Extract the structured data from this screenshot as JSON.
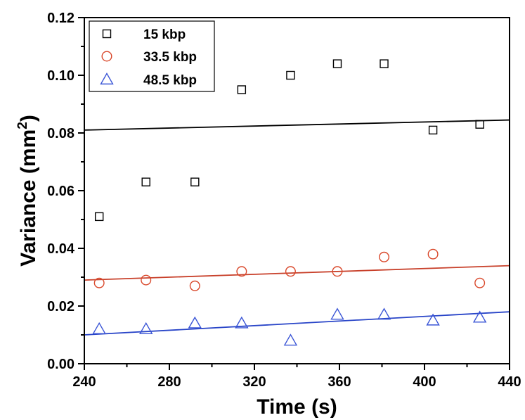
{
  "chart_data": {
    "type": "scatter",
    "title": "",
    "xlabel": "Time (s)",
    "ylabel_main": "Variance (mm",
    "ylabel_sup": "2",
    "ylabel_close": ")",
    "xlim": [
      240,
      440
    ],
    "ylim": [
      0,
      0.12
    ],
    "xticks": [
      240,
      280,
      320,
      360,
      400,
      440
    ],
    "xtick_labels": [
      "240",
      "280",
      "320",
      "360",
      "400",
      "440"
    ],
    "xminor": [
      260,
      300,
      340,
      380,
      420
    ],
    "yticks": [
      0,
      0.02,
      0.04,
      0.06,
      0.08,
      0.1,
      0.12
    ],
    "ytick_labels": [
      "0.00",
      "0.02",
      "0.04",
      "0.06",
      "0.08",
      "0.10",
      "0.12"
    ],
    "yminor": [
      0.01,
      0.03,
      0.05,
      0.07,
      0.09,
      0.11
    ],
    "grid": false,
    "legend_position": "top-left",
    "series": [
      {
        "name": "15 kbp",
        "marker": "square",
        "color": "#000000",
        "fit_color": "#000000",
        "x": [
          247,
          269,
          292,
          314,
          337,
          359,
          381,
          404,
          426
        ],
        "y": [
          0.051,
          0.063,
          0.063,
          0.095,
          0.1,
          0.104,
          0.104,
          0.081,
          0.083
        ],
        "fit_line": {
          "x": [
            240,
            440
          ],
          "y": [
            0.081,
            0.0845
          ]
        }
      },
      {
        "name": "33.5 kbp",
        "marker": "circle",
        "color": "#d9482b",
        "fit_color": "#c8402a",
        "x": [
          247,
          269,
          292,
          314,
          337,
          359,
          381,
          404,
          426
        ],
        "y": [
          0.028,
          0.029,
          0.027,
          0.032,
          0.032,
          0.032,
          0.037,
          0.038,
          0.028
        ],
        "fit_line": {
          "x": [
            240,
            440
          ],
          "y": [
            0.029,
            0.034
          ]
        }
      },
      {
        "name": "48.5 kbp",
        "marker": "triangle",
        "color": "#3a55d6",
        "fit_color": "#2945c8",
        "x": [
          247,
          269,
          292,
          314,
          337,
          359,
          381,
          404,
          426
        ],
        "y": [
          0.012,
          0.012,
          0.014,
          0.014,
          0.008,
          0.017,
          0.017,
          0.015,
          0.016
        ],
        "fit_line": {
          "x": [
            240,
            440
          ],
          "y": [
            0.01,
            0.018
          ]
        }
      }
    ]
  }
}
